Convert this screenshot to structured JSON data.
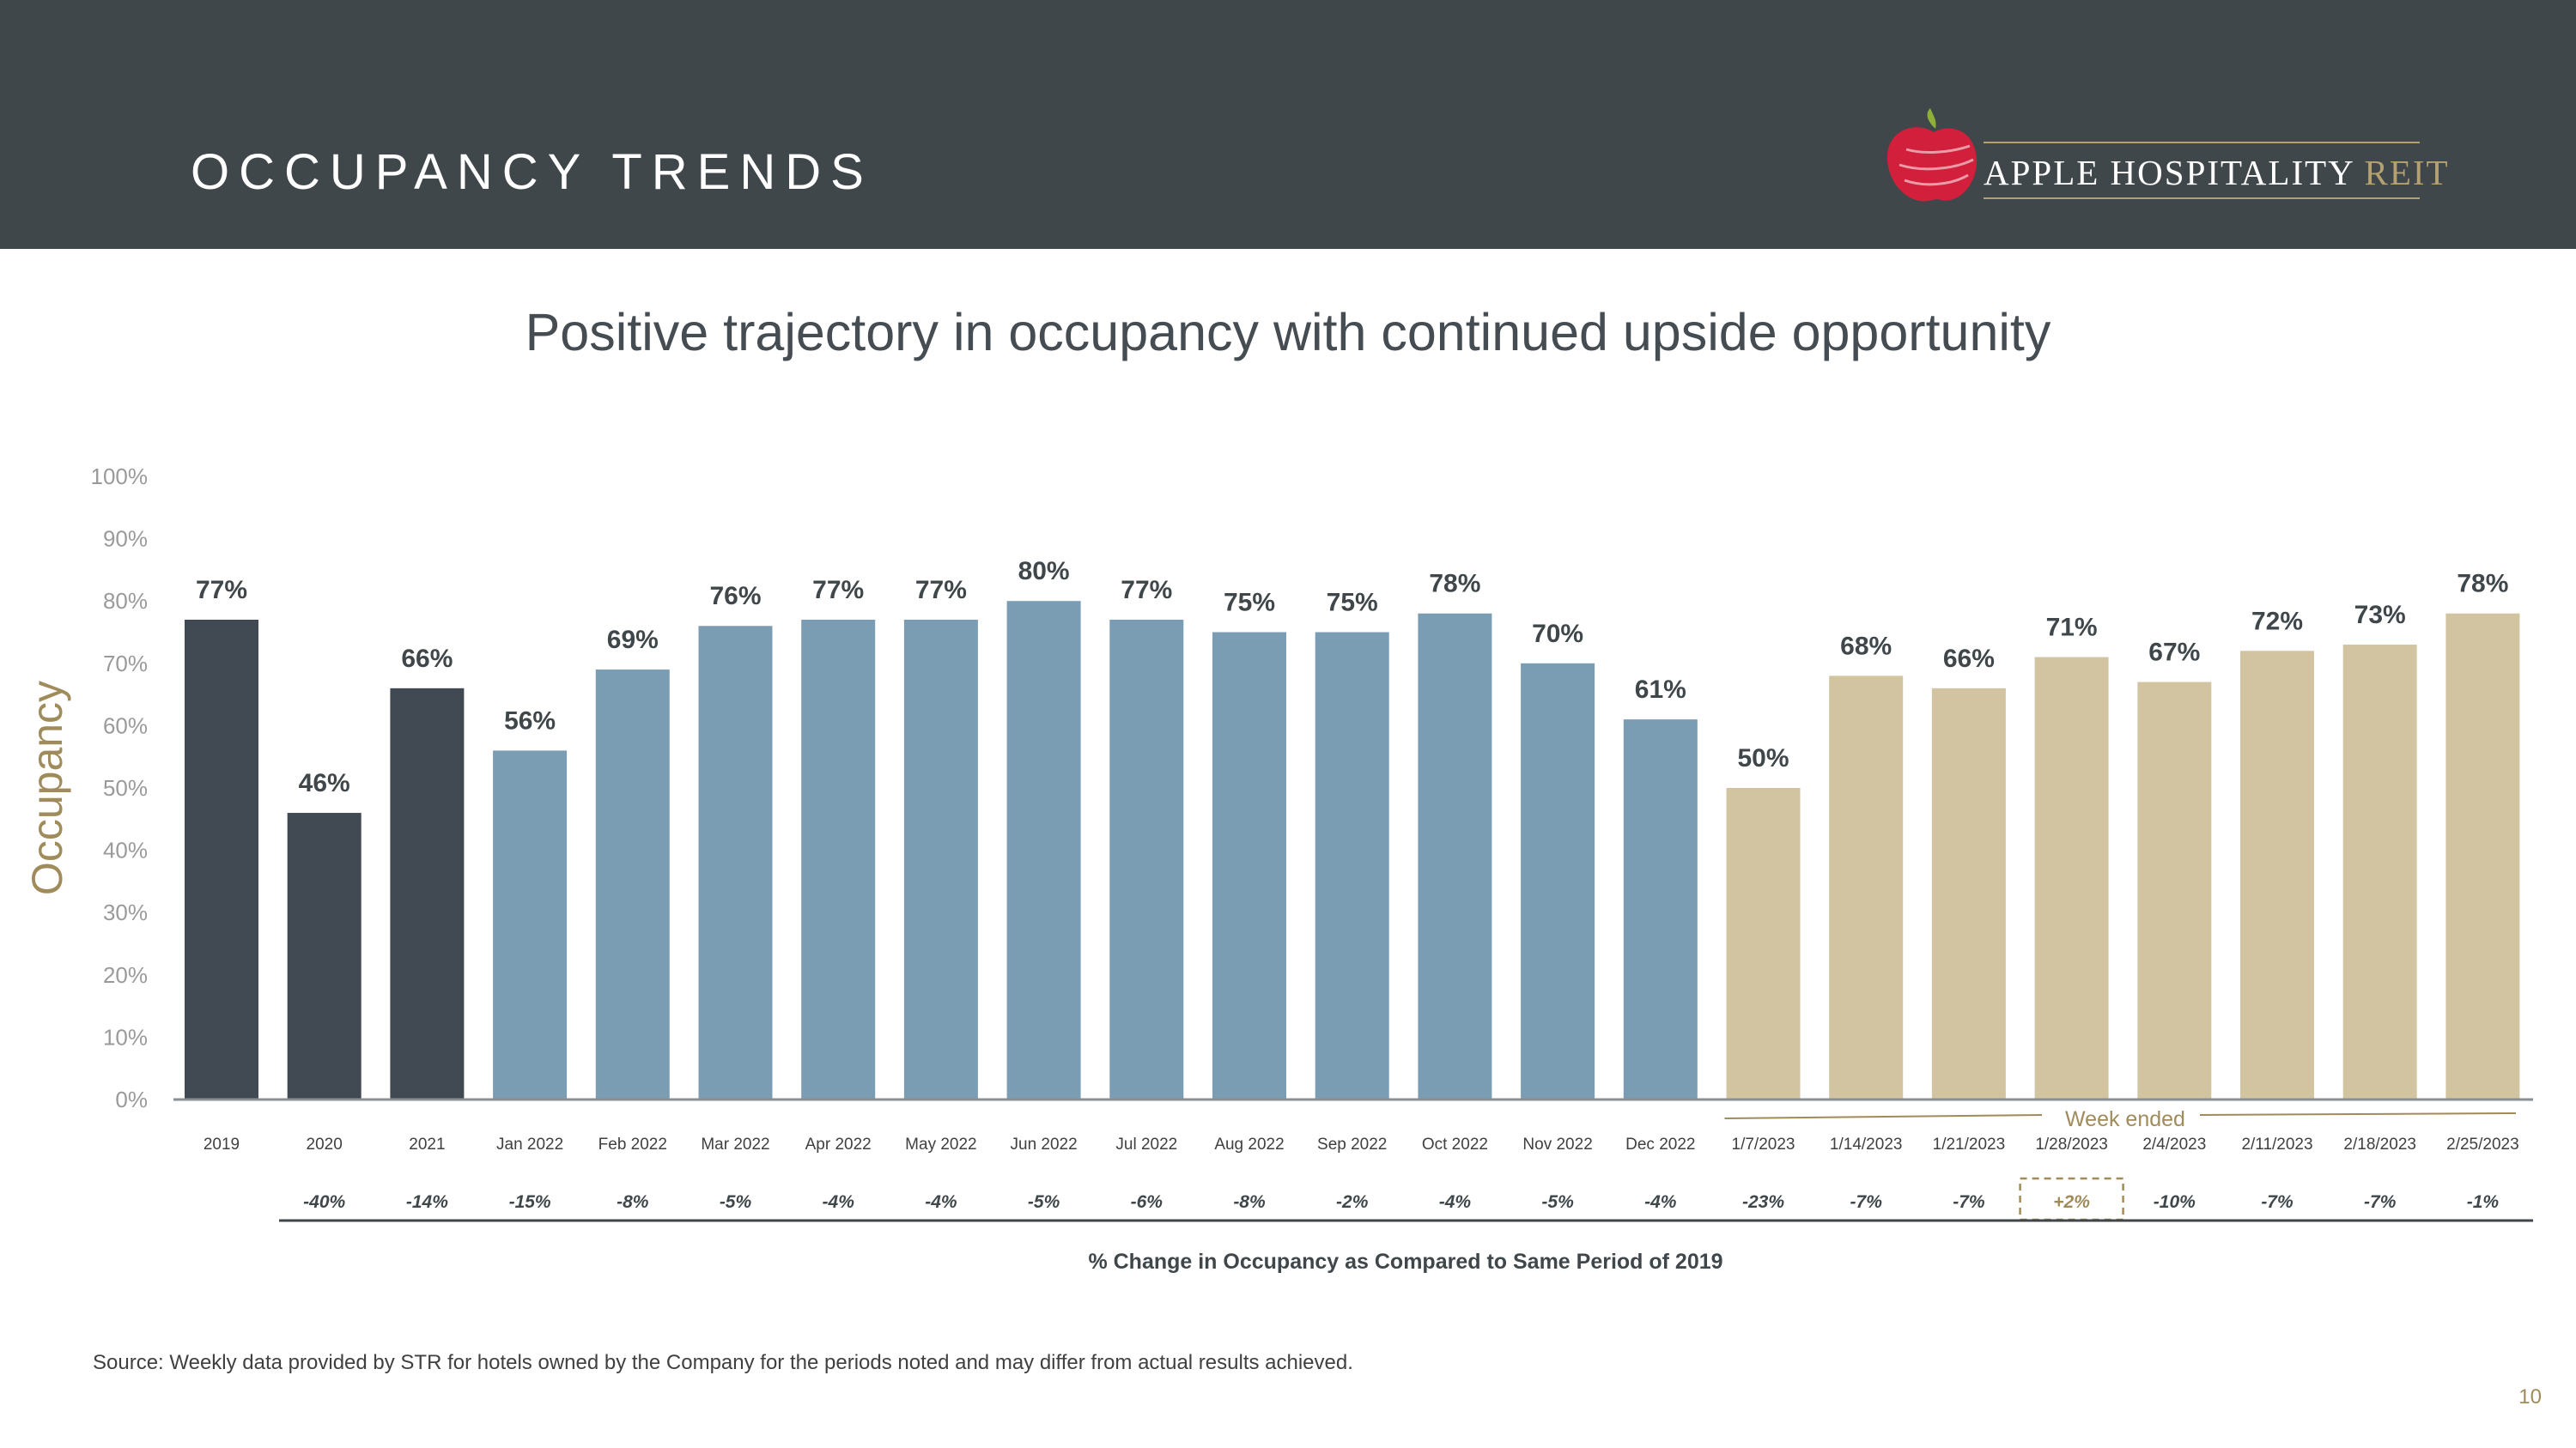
{
  "header": {
    "title": "OCCUPANCY TRENDS",
    "logo_text_main": "APPLE HOSPITALITY",
    "logo_text_accent": "REIT"
  },
  "subtitle": "Positive trajectory in occupancy with continued upside opportunity",
  "chart_data": {
    "type": "bar",
    "ylabel": "Occupancy",
    "ylim": [
      0,
      100
    ],
    "yticks": [
      "0%",
      "10%",
      "20%",
      "30%",
      "40%",
      "50%",
      "60%",
      "70%",
      "80%",
      "90%",
      "100%"
    ],
    "categories": [
      "2019",
      "2020",
      "2021",
      "Jan 2022",
      "Feb 2022",
      "Mar 2022",
      "Apr 2022",
      "May 2022",
      "Jun 2022",
      "Jul 2022",
      "Aug 2022",
      "Sep 2022",
      "Oct 2022",
      "Nov 2022",
      "Dec 2022",
      "1/7/2023",
      "1/14/2023",
      "1/21/2023",
      "1/28/2023",
      "2/4/2023",
      "2/11/2023",
      "2/18/2023",
      "2/25/2023"
    ],
    "values": [
      77,
      46,
      66,
      56,
      69,
      76,
      77,
      77,
      80,
      77,
      75,
      75,
      78,
      70,
      61,
      50,
      68,
      66,
      71,
      67,
      72,
      73,
      78
    ],
    "value_labels": [
      "77%",
      "46%",
      "66%",
      "56%",
      "69%",
      "76%",
      "77%",
      "77%",
      "80%",
      "77%",
      "75%",
      "75%",
      "78%",
      "70%",
      "61%",
      "50%",
      "68%",
      "66%",
      "71%",
      "67%",
      "72%",
      "73%",
      "78%"
    ],
    "groups": [
      "annual",
      "annual",
      "annual",
      "monthly",
      "monthly",
      "monthly",
      "monthly",
      "monthly",
      "monthly",
      "monthly",
      "monthly",
      "monthly",
      "monthly",
      "monthly",
      "monthly",
      "weekly",
      "weekly",
      "weekly",
      "weekly",
      "weekly",
      "weekly",
      "weekly",
      "weekly"
    ],
    "group_colors": {
      "annual": "#414a52",
      "monthly": "#7b9db4",
      "weekly": "#d3c4a1"
    },
    "week_bracket_label": "Week ended",
    "change_vs_2019": [
      null,
      "-40%",
      "-14%",
      "-15%",
      "-8%",
      "-5%",
      "-4%",
      "-4%",
      "-5%",
      "-6%",
      "-8%",
      "-2%",
      "-4%",
      "-5%",
      "-4%",
      "-23%",
      "-7%",
      "-7%",
      "+2%",
      "-10%",
      "-7%",
      "-7%",
      "-1%"
    ],
    "highlighted_change_index": 18,
    "highlight_color": "#a08b5a",
    "change_row_caption": "% Change in Occupancy as Compared to Same Period of 2019",
    "grid": false
  },
  "footer": {
    "source": "Source:  Weekly data provided by STR for hotels owned by the Company for the periods noted and may differ from actual results achieved.",
    "page_number": "10"
  }
}
